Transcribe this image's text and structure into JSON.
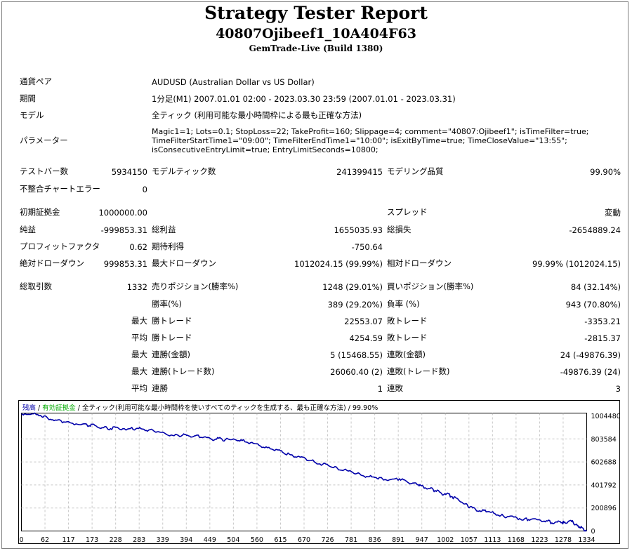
{
  "header": {
    "title": "Strategy Tester Report",
    "ea_name": "40807Ojibeef1_10A404F63",
    "server": "GemTrade-Live (Build 1380)"
  },
  "settings": {
    "symbol_label": "通貨ペア",
    "symbol_value": "AUDUSD (Australian Dollar vs US Dollar)",
    "period_label": "期間",
    "period_value": "1分足(M1) 2007.01.01 02:00 - 2023.03.30 23:59 (2007.01.01 - 2023.03.31)",
    "model_label": "モデル",
    "model_value": "全ティック (利用可能な最小時間枠による最も正確な方法)",
    "params_label": "パラメーター",
    "params_line1": "Magic1=1; Lots=0.1; StopLoss=22; TakeProfit=160; Slippage=4; comment=\"40807:Ojibeef1\"; isTimeFilter=true;",
    "params_line2": "TimeFilterStartTime1=\"09:00\"; TimeFilterEndTime1=\"10:00\"; isExitByTime=true; TimeCloseValue=\"13:55\";",
    "params_line3": "isConsecutiveEntryLimit=true; EntryLimitSeconds=10800;"
  },
  "bars": {
    "bars_label": "テストバー数",
    "bars_value": "5934150",
    "ticks_label": "モデルティック数",
    "ticks_value": "241399415",
    "quality_label": "モデリング品質",
    "quality_value": "99.90%",
    "errors_label": "不整合チャートエラー",
    "errors_value": "0"
  },
  "results": {
    "deposit_label": "初期証拠金",
    "deposit_value": "1000000.00",
    "spread_label": "スプレッド",
    "spread_value": "変動",
    "net_label": "純益",
    "net_value": "-999853.31",
    "gross_profit_label": "総利益",
    "gross_profit_value": "1655035.93",
    "gross_loss_label": "総損失",
    "gross_loss_value": "-2654889.24",
    "pf_label": "プロフィットファクタ",
    "pf_value": "0.62",
    "expected_label": "期待利得",
    "expected_value": "-750.64",
    "abs_dd_label": "絶対ドローダウン",
    "abs_dd_value": "999853.31",
    "max_dd_label": "最大ドローダウン",
    "max_dd_value": "1012024.15 (99.99%)",
    "rel_dd_label": "相対ドローダウン",
    "rel_dd_value": "99.99% (1012024.15)",
    "trades_label": "総取引数",
    "trades_value": "1332",
    "short_label": "売りポジション(勝率%)",
    "short_value": "1248 (29.01%)",
    "long_label": "買いポジション(勝率%)",
    "long_value": "84 (32.14%)",
    "win_label": "勝率(%)",
    "win_value": "389 (29.20%)",
    "loss_label": "負率 (%)",
    "loss_value": "943 (70.80%)",
    "max_label": "最大",
    "avg_label": "平均",
    "largest_win_label": "勝トレード",
    "largest_win_value": "22553.07",
    "largest_loss_label": "敗トレード",
    "largest_loss_value": "-3353.21",
    "avg_win_label": "勝トレード",
    "avg_win_value": "4254.59",
    "avg_loss_label": "敗トレード",
    "avg_loss_value": "-2815.37",
    "max_cons_wins_label": "連勝(金額)",
    "max_cons_wins_value": "5 (15468.55)",
    "max_cons_losses_label": "連敗(金額)",
    "max_cons_losses_value": "24 (-49876.39)",
    "max_cons_profit_label": "連勝(トレード数)",
    "max_cons_profit_value": "26060.40 (2)",
    "max_cons_loss_label": "連敗(トレード数)",
    "max_cons_loss_value": "-49876.39 (24)",
    "avg_cons_wins_label": "連勝",
    "avg_cons_wins_value": "1",
    "avg_cons_losses_label": "連敗",
    "avg_cons_losses_value": "3"
  },
  "chart_data": {
    "type": "line",
    "legend_balance": "残高",
    "legend_sep1": " / ",
    "legend_equity": "有効証拠金",
    "legend_sep2": " / ",
    "legend_rest": "全ティック(利用可能な最小時間枠を使いすべてのティックを生成する、最も正確な方法) / 99.90%",
    "balance_color": "#0000aa",
    "equity_color": "#00aa00",
    "grid": true,
    "xlim": [
      0,
      1332
    ],
    "ylim": [
      0,
      1004480
    ],
    "x_ticks": [
      "0",
      "62",
      "117",
      "173",
      "228",
      "283",
      "339",
      "394",
      "449",
      "504",
      "560",
      "615",
      "670",
      "726",
      "781",
      "836",
      "891",
      "947",
      "1002",
      "1057",
      "1113",
      "1168",
      "1223",
      "1278",
      "1334"
    ],
    "y_ticks": [
      "1004480",
      "803584",
      "602688",
      "401792",
      "200896",
      "0"
    ],
    "series": [
      {
        "points": [
          [
            0,
            1000000
          ],
          [
            25,
            998000
          ],
          [
            45,
            985000
          ],
          [
            62,
            960000
          ],
          [
            80,
            945000
          ],
          [
            100,
            930000
          ],
          [
            117,
            920000
          ],
          [
            140,
            905000
          ],
          [
            160,
            897000
          ],
          [
            173,
            900000
          ],
          [
            190,
            880000
          ],
          [
            210,
            872000
          ],
          [
            228,
            878000
          ],
          [
            250,
            868000
          ],
          [
            270,
            872000
          ],
          [
            283,
            870000
          ],
          [
            300,
            860000
          ],
          [
            320,
            845000
          ],
          [
            339,
            830000
          ],
          [
            360,
            812000
          ],
          [
            380,
            818000
          ],
          [
            394,
            810000
          ],
          [
            410,
            812000
          ],
          [
            430,
            800000
          ],
          [
            449,
            778000
          ],
          [
            465,
            790000
          ],
          [
            480,
            776000
          ],
          [
            504,
            778000
          ],
          [
            520,
            770000
          ],
          [
            540,
            752000
          ],
          [
            560,
            730000
          ],
          [
            580,
            710000
          ],
          [
            600,
            695000
          ],
          [
            615,
            672000
          ],
          [
            635,
            648000
          ],
          [
            650,
            632000
          ],
          [
            670,
            615000
          ],
          [
            690,
            590000
          ],
          [
            710,
            568000
          ],
          [
            726,
            552000
          ],
          [
            745,
            532000
          ],
          [
            760,
            520000
          ],
          [
            781,
            498000
          ],
          [
            800,
            476000
          ],
          [
            816,
            462000
          ],
          [
            836,
            455000
          ],
          [
            850,
            448000
          ],
          [
            870,
            438000
          ],
          [
            891,
            445000
          ],
          [
            905,
            430000
          ],
          [
            920,
            405000
          ],
          [
            935,
            395000
          ],
          [
            947,
            378000
          ],
          [
            960,
            362000
          ],
          [
            975,
            345000
          ],
          [
            990,
            320000
          ],
          [
            1002,
            318000
          ],
          [
            1015,
            292000
          ],
          [
            1030,
            265000
          ],
          [
            1045,
            230000
          ],
          [
            1057,
            205000
          ],
          [
            1070,
            185000
          ],
          [
            1085,
            170000
          ],
          [
            1100,
            165000
          ],
          [
            1113,
            152000
          ],
          [
            1130,
            132000
          ],
          [
            1145,
            122000
          ],
          [
            1168,
            110000
          ],
          [
            1185,
            102000
          ],
          [
            1200,
            98000
          ],
          [
            1223,
            92000
          ],
          [
            1240,
            85000
          ],
          [
            1255,
            65000
          ],
          [
            1270,
            80000
          ],
          [
            1278,
            70000
          ],
          [
            1290,
            85000
          ],
          [
            1300,
            75000
          ],
          [
            1310,
            45000
          ],
          [
            1318,
            30000
          ],
          [
            1325,
            12000
          ],
          [
            1332,
            0
          ]
        ]
      }
    ]
  }
}
